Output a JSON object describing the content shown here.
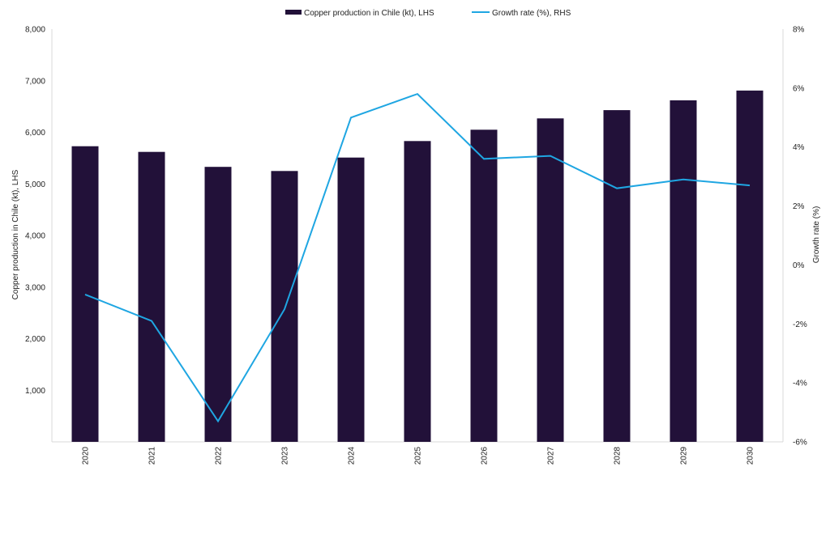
{
  "chart_data": {
    "type": "bar",
    "categories": [
      "2020",
      "2021",
      "2022",
      "2023",
      "2024",
      "2025",
      "2026",
      "2027",
      "2028",
      "2029",
      "2030"
    ],
    "series": [
      {
        "name": "Copper production in Chile (kt), LHS",
        "type": "bar",
        "axis": "left",
        "color": "#221139",
        "values": [
          5730,
          5620,
          5330,
          5250,
          5510,
          5830,
          6050,
          6270,
          6430,
          6620,
          6810
        ]
      },
      {
        "name": "Growth rate (%), RHS",
        "type": "line",
        "axis": "right",
        "color": "#1fa6e2",
        "values": [
          -1.0,
          -1.9,
          -5.3,
          -1.5,
          5.0,
          5.8,
          3.6,
          3.7,
          2.6,
          2.9,
          2.7
        ]
      }
    ],
    "ylabel": "Copper production in Chile (kt), LHS",
    "y2label": "Growth rate (%)",
    "ylim": [
      0,
      8000
    ],
    "y_ticks": [
      "",
      "1,000",
      "2,000",
      "3,000",
      "4,000",
      "5,000",
      "6,000",
      "7,000",
      "8,000"
    ],
    "y2lim": [
      -6,
      8
    ],
    "y2_ticks": [
      "-6%",
      "-4%",
      "-2%",
      "0%",
      "2%",
      "4%",
      "6%",
      "8%"
    ],
    "grid": false,
    "legend": "top-center"
  }
}
